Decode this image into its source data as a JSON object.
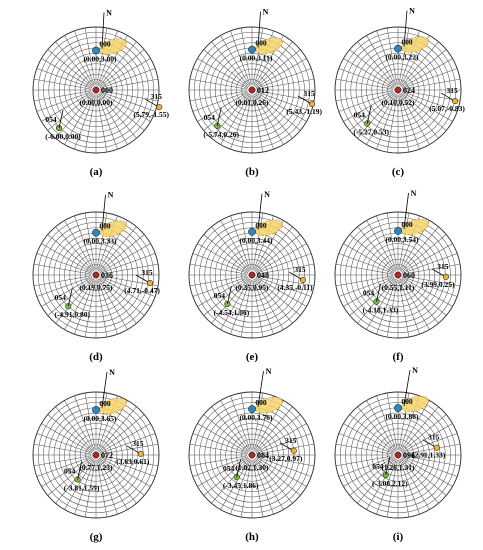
{
  "panels": [
    {
      "caption": "(a)",
      "center_id": "000",
      "center_coord": "(0.00,0.00)",
      "north": "N",
      "targets": [
        {
          "id": "000",
          "coord": "(0.00,3.00)",
          "color": "#2e86c1"
        },
        {
          "id": "054",
          "coord": "(-6.00,0.00)",
          "color": "#7dbb3a"
        },
        {
          "id": "315",
          "coord": "(5.79,-1.55)",
          "color": "#f0b030"
        }
      ]
    },
    {
      "caption": "(b)",
      "center_id": "012",
      "center_coord": "(0.01,0.26)",
      "north": "N",
      "targets": [
        {
          "id": "000",
          "coord": "(0.00,3.11)",
          "color": "#2e86c1"
        },
        {
          "id": "054",
          "coord": "(-5.74,0.26)",
          "color": "#7dbb3a"
        },
        {
          "id": "315",
          "coord": "(5.43,-1.19)",
          "color": "#f0b030"
        }
      ]
    },
    {
      "caption": "(c)",
      "center_id": "024",
      "center_coord": "(0.10,0.52)",
      "north": "N",
      "targets": [
        {
          "id": "000",
          "coord": "(0.00,3.22)",
          "color": "#2e86c1"
        },
        {
          "id": "054",
          "coord": "(-5.27,0.53)",
          "color": "#7dbb3a"
        },
        {
          "id": "315",
          "coord": "(5.07,-0.83)",
          "color": "#f0b030"
        }
      ]
    },
    {
      "caption": "(d)",
      "center_id": "036",
      "center_coord": "(0.19,0.75)",
      "north": "N",
      "targets": [
        {
          "id": "000",
          "coord": "(0.00,3.33)",
          "color": "#2e86c1"
        },
        {
          "id": "054",
          "coord": "(-4.91,0.80)",
          "color": "#7dbb3a"
        },
        {
          "id": "315",
          "coord": "(4.71,-0.47)",
          "color": "#f0b030"
        }
      ]
    },
    {
      "caption": "(e)",
      "center_id": "048",
      "center_coord": "(0.35,0.95)",
      "north": "N",
      "targets": [
        {
          "id": "000",
          "coord": "(0.00,3.44)",
          "color": "#2e86c1"
        },
        {
          "id": "054",
          "coord": "(-4.54,1.06)",
          "color": "#7dbb3a"
        },
        {
          "id": "315",
          "coord": "(4.35,-0.11)",
          "color": "#f0b030"
        }
      ]
    },
    {
      "caption": "(f)",
      "center_id": "060",
      "center_coord": "(0.55,1.11)",
      "north": "N",
      "targets": [
        {
          "id": "000",
          "coord": "(0.00,3.54)",
          "color": "#2e86c1"
        },
        {
          "id": "054",
          "coord": "(-4.18,1.33)",
          "color": "#7dbb3a"
        },
        {
          "id": "315",
          "coord": "(3.99,0.25)",
          "color": "#f0b030"
        }
      ]
    },
    {
      "caption": "(g)",
      "center_id": "072",
      "center_coord": "(0.77,1.23)",
      "north": "N",
      "targets": [
        {
          "id": "000",
          "coord": "(0.00,3.65)",
          "color": "#2e86c1"
        },
        {
          "id": "054",
          "coord": "(-3.81,1.59)",
          "color": "#7dbb3a"
        },
        {
          "id": "315",
          "coord": "(3.63,0.61)",
          "color": "#f0b030"
        }
      ]
    },
    {
      "caption": "(h)",
      "center_id": "084",
      "center_coord": "(1.02,1.30)",
      "north": "N",
      "targets": [
        {
          "id": "000",
          "coord": "(0.00,3.76)",
          "color": "#2e86c1"
        },
        {
          "id": "054",
          "coord": "(-3.45,1.86)",
          "color": "#7dbb3a"
        },
        {
          "id": "315",
          "coord": "(3.27,0.97)",
          "color": "#f0b030"
        }
      ]
    },
    {
      "caption": "(i)",
      "center_id": "096",
      "center_coord": "(1.28,1.31)",
      "north": "N",
      "targets": [
        {
          "id": "000",
          "coord": "(0.00,3.88)",
          "color": "#2e86c1"
        },
        {
          "id": "054",
          "coord": "(-3.08,2.12)",
          "color": "#7dbb3a"
        },
        {
          "id": "315",
          "coord": "(2.91,1.33)",
          "color": "#f0b030"
        }
      ]
    }
  ]
}
